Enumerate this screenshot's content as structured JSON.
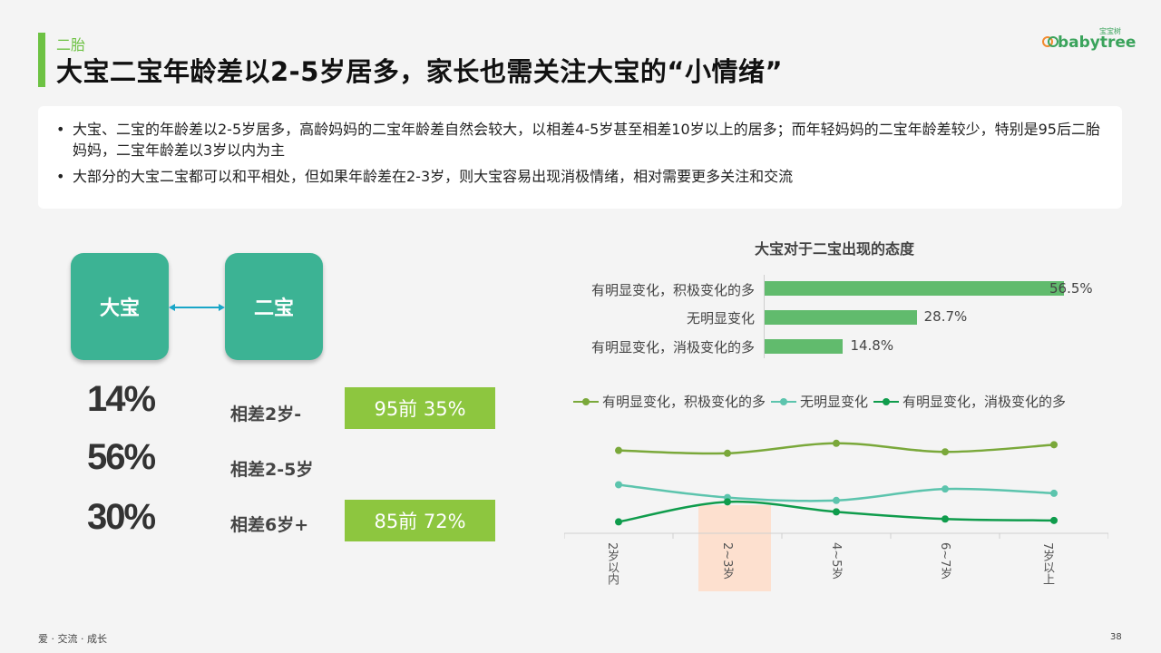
{
  "header": {
    "subtitle": "二胎",
    "title": "大宝二宝年龄差以2-5岁居多，家长也需关注大宝的“小情绪”",
    "logo_text": "babytree",
    "logo_small": "宝宝树"
  },
  "bullets": [
    "大宝、二宝的年龄差以2-5岁居多，高龄妈妈的二宝年龄差自然会较大，以相差4-5岁甚至相差10岁以上的居多；而年轻妈妈的二宝年龄差较少，特别是95后二胎妈妈，二宝年龄差以3岁以内为主",
    "大部分的大宝二宝都可以和平相处，但如果年龄差在2-3岁，则大宝容易出现消极情绪，相对需要更多关注和交流"
  ],
  "siblings": {
    "elder": "大宝",
    "younger": "二宝"
  },
  "age_gap": [
    {
      "percent": "14%",
      "label": "相差2岁-",
      "tag": "95前 35%"
    },
    {
      "percent": "56%",
      "label": "相差2-5岁",
      "tag": ""
    },
    {
      "percent": "30%",
      "label": "相差6岁+",
      "tag": "85前 72%"
    }
  ],
  "colors": {
    "accent": "#6dc243",
    "box": "#3cb394",
    "tag": "#8dc63f",
    "bar": "#61bb6d",
    "series_positive": "#7aa83a",
    "series_neutral": "#5cc4ad",
    "series_negative": "#0f9c4c",
    "highlight": "#fde0cf"
  },
  "chart_data": [
    {
      "type": "bar",
      "orientation": "horizontal",
      "title": "大宝对于二宝出现的态度",
      "categories": [
        "有明显变化，积极变化的多",
        "无明显变化",
        "有明显变化，消极变化的多"
      ],
      "values": [
        56.5,
        28.7,
        14.8
      ],
      "value_labels": [
        "56.5%",
        "28.7%",
        "14.8%"
      ],
      "xlim": [
        0,
        56.5
      ]
    },
    {
      "type": "line",
      "categories": [
        "2岁以内",
        "2~3岁",
        "4~5岁",
        "6~7岁",
        "7岁以上"
      ],
      "highlight_category": "2~3岁",
      "legend_position": "top",
      "series": [
        {
          "name": "有明显变化，积极变化的多",
          "values": [
            58,
            56,
            63,
            57,
            62
          ]
        },
        {
          "name": "无明显变化",
          "values": [
            34,
            25,
            23,
            31,
            28
          ]
        },
        {
          "name": "有明显变化，消极变化的多",
          "values": [
            8,
            22,
            15,
            10,
            9
          ]
        }
      ],
      "ylim": [
        0,
        80
      ]
    }
  ],
  "footer": {
    "text": "爱 · 交流 · 成长",
    "page": "38"
  }
}
